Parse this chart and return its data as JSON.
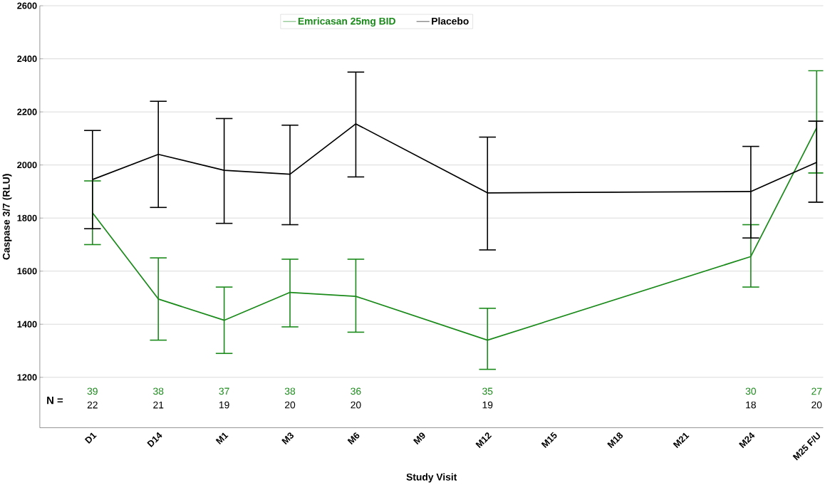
{
  "chart_data": {
    "type": "line",
    "xlabel": "Study Visit",
    "ylabel": "Caspase 3/7 (RLU)",
    "categories": [
      "D1",
      "D14",
      "M1",
      "M3",
      "M6",
      "M9",
      "M12",
      "M15",
      "M18",
      "M21",
      "M24",
      "M25 F/U"
    ],
    "series": [
      {
        "name": "Emricasan 25mg BID",
        "color": "#1a8a1a",
        "values": [
          1820,
          1495,
          1415,
          1520,
          1505,
          null,
          1340,
          null,
          null,
          null,
          1655,
          2140
        ],
        "errors": [
          [
            1700,
            1940
          ],
          [
            1340,
            1650
          ],
          [
            1290,
            1540
          ],
          [
            1390,
            1645
          ],
          [
            1370,
            1645
          ],
          null,
          [
            1230,
            1460
          ],
          null,
          null,
          null,
          [
            1540,
            1775
          ],
          [
            1970,
            2355
          ]
        ]
      },
      {
        "name": "Placebo",
        "color": "#000000",
        "values": [
          1945,
          2040,
          1980,
          1965,
          2155,
          null,
          1895,
          null,
          null,
          null,
          1900,
          2010
        ],
        "errors": [
          [
            1760,
            2130
          ],
          [
            1840,
            2240
          ],
          [
            1780,
            2175
          ],
          [
            1775,
            2150
          ],
          [
            1955,
            2350
          ],
          null,
          [
            1680,
            2105
          ],
          null,
          null,
          null,
          [
            1725,
            2070
          ],
          [
            1860,
            2165
          ]
        ]
      }
    ],
    "ylim": [
      1010,
      2600
    ],
    "yticks": [
      1200,
      1400,
      1600,
      1800,
      2000,
      2200,
      2400,
      2600
    ],
    "grid": "y",
    "legend": "top",
    "line_style": "solid",
    "marker": "none",
    "annotations": [
      "N =",
      "39",
      "38",
      "37",
      "38",
      "36",
      "35",
      "30",
      "27",
      "22",
      "21",
      "19",
      "20",
      "20",
      "19",
      "18",
      "20"
    ]
  }
}
